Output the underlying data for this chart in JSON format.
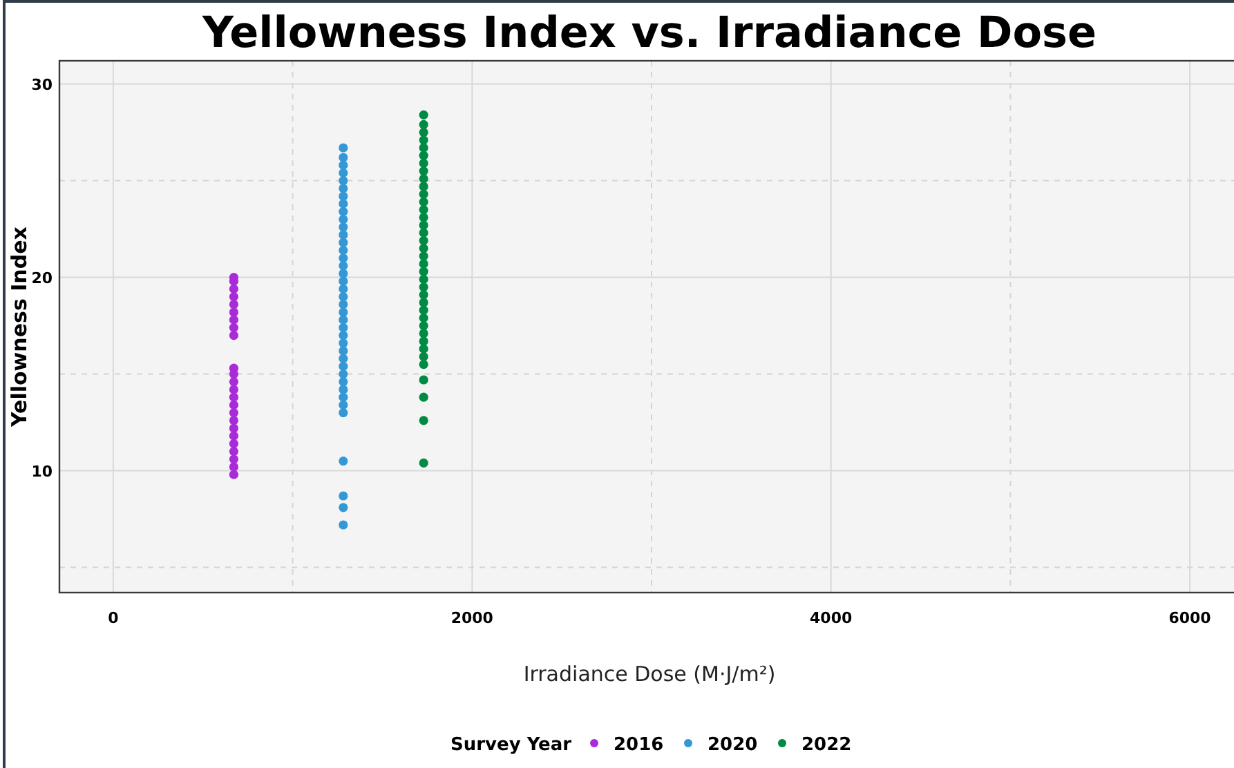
{
  "chart_data": {
    "type": "scatter",
    "title": "Yellowness Index vs. Irradiance Dose",
    "xlabel": "Irradiance Dose (M·J/m²)",
    "ylabel": "Yellowness Index",
    "legend_title": "Survey Year",
    "legend": "bottom",
    "grid": true,
    "marker": "circle",
    "xlim": [
      -300,
      6300
    ],
    "ylim": [
      3.7,
      31.2
    ],
    "xticks": [
      0,
      {
        "value": 1000,
        "label": null
      },
      2000,
      {
        "value": 3000,
        "label": null
      },
      4000,
      {
        "value": 5000,
        "label": null
      },
      6000
    ],
    "yticks": [
      {
        "value": 5,
        "label": null
      },
      10,
      {
        "value": 15,
        "label": null
      },
      20,
      {
        "value": 25,
        "label": null
      },
      30
    ],
    "series": [
      {
        "name": "2016",
        "color": "#a92bd8",
        "x": [
          672,
          672,
          672,
          672,
          672,
          672,
          672,
          672,
          672,
          672,
          672,
          672,
          672,
          672,
          672,
          672,
          672,
          672,
          672,
          672,
          672,
          672,
          672,
          672
        ],
        "values": [
          9.8,
          10.2,
          10.6,
          11.0,
          11.4,
          11.8,
          12.2,
          12.6,
          13.0,
          13.4,
          13.8,
          14.2,
          14.6,
          15.0,
          15.3,
          17.0,
          17.4,
          17.8,
          18.2,
          18.6,
          19.0,
          19.4,
          19.8,
          20.0
        ]
      },
      {
        "name": "2020",
        "color": "#3497d6",
        "x": [
          1282,
          1282,
          1282,
          1282,
          1282,
          1282,
          1282,
          1282,
          1282,
          1282,
          1282,
          1282,
          1282,
          1282,
          1282,
          1282,
          1282,
          1282,
          1282,
          1282,
          1282,
          1282,
          1282,
          1282,
          1282,
          1282,
          1282,
          1282,
          1282,
          1282,
          1282,
          1282,
          1282,
          1282,
          1282,
          1282,
          1282,
          1282,
          1282
        ],
        "values": [
          7.2,
          8.1,
          8.7,
          10.5,
          13.0,
          13.4,
          13.8,
          14.2,
          14.6,
          15.0,
          15.4,
          15.8,
          16.2,
          16.6,
          17.0,
          17.4,
          17.8,
          18.2,
          18.6,
          19.0,
          19.4,
          19.8,
          20.2,
          20.6,
          21.0,
          21.4,
          21.8,
          22.2,
          22.6,
          23.0,
          23.4,
          23.8,
          24.2,
          24.6,
          25.0,
          25.4,
          25.8,
          26.2,
          26.7
        ]
      },
      {
        "name": "2022",
        "color": "#008a44",
        "x": [
          1730,
          1730,
          1730,
          1730,
          1730,
          1730,
          1730,
          1730,
          1730,
          1730,
          1730,
          1730,
          1730,
          1730,
          1730,
          1730,
          1730,
          1730,
          1730,
          1730,
          1730,
          1730,
          1730,
          1730,
          1730,
          1730,
          1730,
          1730,
          1730,
          1730,
          1730,
          1730,
          1730,
          1730,
          1730,
          1730,
          1730
        ],
        "values": [
          10.4,
          12.6,
          13.8,
          14.7,
          15.5,
          15.9,
          16.3,
          16.7,
          17.1,
          17.5,
          17.9,
          18.3,
          18.7,
          19.1,
          19.5,
          19.9,
          20.3,
          20.7,
          21.1,
          21.5,
          21.9,
          22.3,
          22.7,
          23.1,
          23.5,
          23.9,
          24.3,
          24.7,
          25.1,
          25.5,
          25.9,
          26.3,
          26.7,
          27.1,
          27.5,
          27.9,
          28.4
        ]
      }
    ]
  }
}
